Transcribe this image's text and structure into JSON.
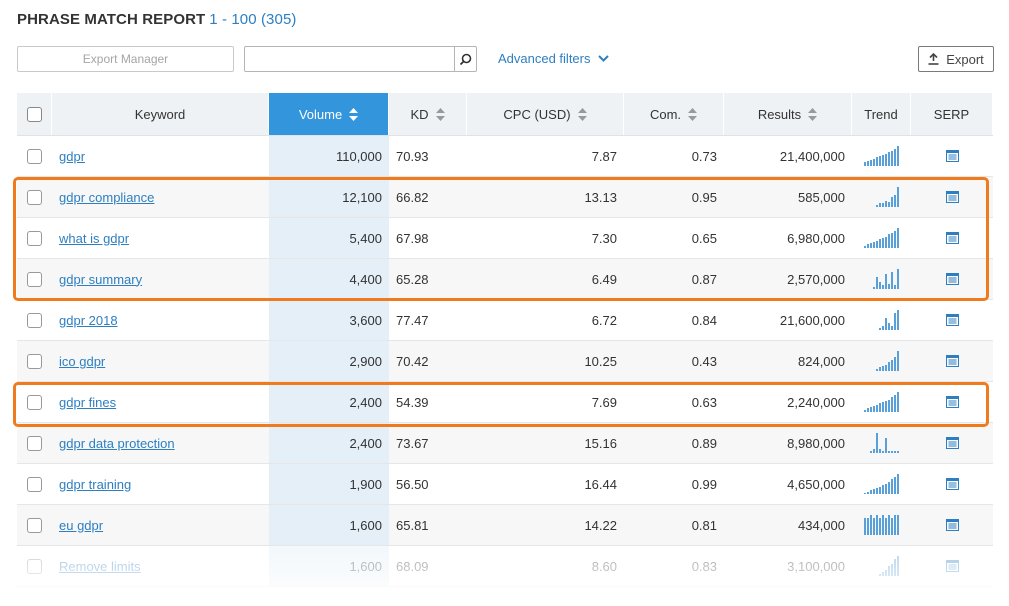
{
  "header": {
    "title": "PHRASE MATCH REPORT",
    "range": "1 - 100 (305)"
  },
  "toolbar": {
    "export_manager_placeholder": "Export Manager",
    "search_value": "",
    "advanced_filters_label": "Advanced filters",
    "export_label": "Export"
  },
  "columns": [
    "Keyword",
    "Volume",
    "KD",
    "CPC (USD)",
    "Com.",
    "Results",
    "Trend",
    "SERP"
  ],
  "rows": [
    {
      "keyword": "gdpr",
      "volume": "110,000",
      "kd": "70.93",
      "cpc": "7.87",
      "com": "0.73",
      "results": "21,400,000",
      "trend": [
        3,
        4,
        5,
        6,
        7,
        8,
        9,
        10,
        11,
        12,
        14,
        16
      ]
    },
    {
      "keyword": "gdpr compliance",
      "volume": "12,100",
      "kd": "66.82",
      "cpc": "13.13",
      "com": "0.95",
      "results": "585,000",
      "trend": [
        0,
        0,
        0,
        0,
        2,
        3,
        3,
        5,
        4,
        8,
        10,
        16
      ]
    },
    {
      "keyword": "what is gdpr",
      "volume": "5,400",
      "kd": "67.98",
      "cpc": "7.30",
      "com": "0.65",
      "results": "6,980,000",
      "trend": [
        2,
        3,
        4,
        5,
        6,
        7,
        8,
        9,
        11,
        12,
        14,
        16
      ]
    },
    {
      "keyword": "gdpr summary",
      "volume": "4,400",
      "kd": "65.28",
      "cpc": "6.49",
      "com": "0.87",
      "results": "2,570,000",
      "trend": [
        0,
        0,
        0,
        2,
        10,
        6,
        3,
        12,
        4,
        14,
        3,
        16
      ]
    },
    {
      "keyword": "gdpr 2018",
      "volume": "3,600",
      "kd": "77.47",
      "cpc": "6.72",
      "com": "0.84",
      "results": "21,600,000",
      "trend": [
        0,
        0,
        0,
        0,
        0,
        2,
        3,
        10,
        6,
        3,
        14,
        16
      ]
    },
    {
      "keyword": "ico gdpr",
      "volume": "2,900",
      "kd": "70.42",
      "cpc": "10.25",
      "com": "0.43",
      "results": "824,000",
      "trend": [
        0,
        0,
        0,
        0,
        2,
        3,
        4,
        5,
        7,
        9,
        11,
        16
      ]
    },
    {
      "keyword": "gdpr fines",
      "volume": "2,400",
      "kd": "54.39",
      "cpc": "7.69",
      "com": "0.63",
      "results": "2,240,000",
      "trend": [
        2,
        3,
        4,
        5,
        6,
        7,
        8,
        9,
        10,
        12,
        14,
        16
      ]
    },
    {
      "keyword": "gdpr data protection",
      "volume": "2,400",
      "kd": "73.67",
      "cpc": "15.16",
      "com": "0.89",
      "results": "8,980,000",
      "trend": [
        0,
        0,
        2,
        3,
        16,
        3,
        2,
        12,
        2,
        2,
        2,
        2
      ]
    },
    {
      "keyword": "gdpr training",
      "volume": "1,900",
      "kd": "56.50",
      "cpc": "16.44",
      "com": "0.99",
      "results": "4,650,000",
      "trend": [
        1,
        2,
        3,
        4,
        5,
        6,
        7,
        8,
        10,
        12,
        14,
        16
      ]
    },
    {
      "keyword": "eu gdpr",
      "volume": "1,600",
      "kd": "65.81",
      "cpc": "14.22",
      "com": "0.81",
      "results": "434,000",
      "trend": [
        14,
        14,
        16,
        14,
        16,
        14,
        16,
        14,
        16,
        14,
        16,
        16
      ]
    },
    {
      "keyword": "Remove limits",
      "volume": "1,600",
      "kd": "68.09",
      "cpc": "8.60",
      "com": "0.83",
      "results": "3,100,000",
      "trend": [
        0,
        0,
        0,
        0,
        0,
        2,
        3,
        5,
        8,
        10,
        14,
        16
      ]
    }
  ],
  "colors": {
    "accent": "#3396dc",
    "link": "#2d7fc1",
    "highlight": "#f07a1e"
  }
}
